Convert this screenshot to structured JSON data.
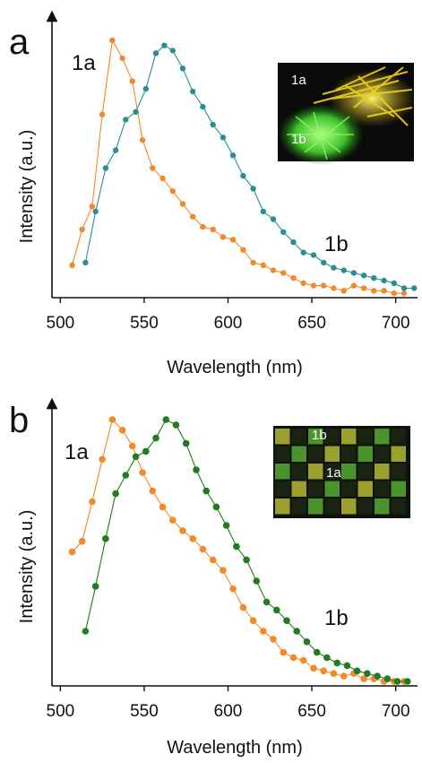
{
  "chart_data": [
    {
      "panel": "a",
      "type": "line",
      "title": "",
      "xlabel": "Wavelength (nm)",
      "ylabel": "Intensity (a.u.)",
      "xlim": [
        495,
        713
      ],
      "ylim": [
        0,
        1
      ],
      "xticks": [
        500,
        550,
        600,
        650,
        700
      ],
      "grid": false,
      "inset": {
        "type": "photo",
        "labels": [
          "1a",
          "1b"
        ]
      },
      "series": [
        {
          "name": "1a",
          "color": "#f28a2c",
          "x": [
            507,
            513,
            519,
            525,
            531,
            537,
            543,
            549,
            555,
            561,
            567,
            573,
            579,
            585,
            591,
            597,
            603,
            609,
            615,
            621,
            627,
            633,
            639,
            645,
            651,
            657,
            663,
            669,
            675,
            681,
            687,
            693,
            699,
            705
          ],
          "y": [
            0.12,
            0.26,
            0.35,
            0.71,
            1.0,
            0.93,
            0.84,
            0.61,
            0.5,
            0.46,
            0.41,
            0.36,
            0.31,
            0.27,
            0.26,
            0.23,
            0.22,
            0.18,
            0.13,
            0.12,
            0.1,
            0.09,
            0.07,
            0.05,
            0.04,
            0.04,
            0.03,
            0.02,
            0.04,
            0.03,
            0.02,
            0.02,
            0.01,
            0.01
          ]
        },
        {
          "name": "1b",
          "color": "#2a8f95",
          "x": [
            515,
            521,
            527,
            533,
            539,
            545,
            551,
            557,
            562,
            567,
            573,
            579,
            585,
            591,
            597,
            603,
            609,
            615,
            621,
            627,
            633,
            639,
            645,
            651,
            657,
            663,
            669,
            675,
            681,
            687,
            693,
            699,
            705,
            711
          ],
          "y": [
            0.13,
            0.33,
            0.5,
            0.57,
            0.69,
            0.72,
            0.81,
            0.95,
            0.98,
            0.96,
            0.89,
            0.8,
            0.74,
            0.67,
            0.62,
            0.55,
            0.47,
            0.42,
            0.33,
            0.3,
            0.25,
            0.21,
            0.17,
            0.16,
            0.13,
            0.11,
            0.1,
            0.09,
            0.08,
            0.07,
            0.06,
            0.05,
            0.03,
            0.03
          ]
        }
      ]
    },
    {
      "panel": "b",
      "type": "line",
      "title": "",
      "xlabel": "Wavelength (nm)",
      "ylabel": "Intensity (a.u.)",
      "xlim": [
        495,
        713
      ],
      "ylim": [
        0,
        1
      ],
      "xticks": [
        500,
        550,
        600,
        650,
        700
      ],
      "grid": false,
      "inset": {
        "type": "photo",
        "labels": [
          "1b",
          "1a"
        ]
      },
      "series": [
        {
          "name": "1a",
          "color": "#f28a2c",
          "x": [
            507,
            513,
            519,
            525,
            531,
            537,
            543,
            549,
            555,
            561,
            567,
            573,
            579,
            585,
            591,
            597,
            603,
            609,
            615,
            621,
            627,
            633,
            639,
            645,
            651,
            657,
            663,
            669,
            675,
            681,
            687,
            693,
            699,
            705
          ],
          "y": [
            0.5,
            0.54,
            0.69,
            0.85,
            1.0,
            0.96,
            0.9,
            0.8,
            0.73,
            0.67,
            0.62,
            0.58,
            0.55,
            0.51,
            0.47,
            0.43,
            0.36,
            0.29,
            0.24,
            0.2,
            0.17,
            0.12,
            0.1,
            0.09,
            0.06,
            0.05,
            0.04,
            0.03,
            0.04,
            0.02,
            0.02,
            0.01,
            0.01,
            0.01
          ]
        },
        {
          "name": "1b",
          "color": "#1f7c1f",
          "x": [
            515,
            521,
            527,
            533,
            539,
            545,
            551,
            557,
            563,
            569,
            575,
            581,
            587,
            593,
            599,
            605,
            611,
            617,
            623,
            629,
            635,
            641,
            647,
            653,
            659,
            665,
            671,
            677,
            683,
            689,
            695,
            701,
            707
          ],
          "y": [
            0.2,
            0.37,
            0.55,
            0.72,
            0.79,
            0.86,
            0.88,
            0.93,
            1.0,
            0.98,
            0.91,
            0.81,
            0.73,
            0.67,
            0.6,
            0.52,
            0.47,
            0.39,
            0.31,
            0.28,
            0.24,
            0.2,
            0.16,
            0.12,
            0.1,
            0.08,
            0.07,
            0.05,
            0.04,
            0.03,
            0.02,
            0.01,
            0.01
          ]
        }
      ]
    }
  ]
}
